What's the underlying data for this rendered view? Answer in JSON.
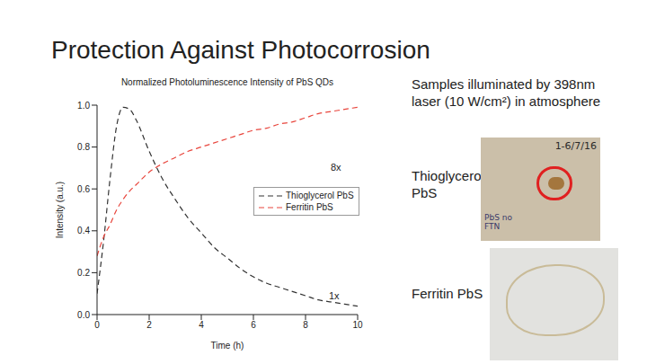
{
  "title": "Protection Against Photocorrosion",
  "caption": "Samples illuminated by 398nm laser (10 W/cm²) in atmosphere",
  "samples": [
    {
      "label": "Thioglycerol PbS",
      "notes": [
        "1-6/7/16",
        "PbS no FTN"
      ]
    },
    {
      "label": "Ferritin PbS",
      "notes": []
    }
  ],
  "chart_data": {
    "type": "line",
    "title": "Normalized Photoluminescence Intensity of PbS QDs",
    "x_label": "Time (h)",
    "y_label": "Intensity (a.u.)",
    "x": [
      0,
      0.25,
      0.5,
      0.75,
      1,
      1.25,
      1.5,
      2,
      2.5,
      3,
      3.5,
      4,
      4.5,
      5,
      5.5,
      6,
      6.5,
      7,
      7.5,
      8,
      8.5,
      9,
      9.5,
      10
    ],
    "series": [
      {
        "name": "Thioglycerol PbS",
        "color": "#333333",
        "line_style": "dashed",
        "marker": "none",
        "values": [
          0.1,
          0.35,
          0.65,
          0.9,
          0.99,
          0.98,
          0.93,
          0.78,
          0.65,
          0.55,
          0.46,
          0.39,
          0.32,
          0.27,
          0.22,
          0.18,
          0.15,
          0.13,
          0.11,
          0.09,
          0.07,
          0.06,
          0.05,
          0.04
        ]
      },
      {
        "name": "Ferritin PbS",
        "color": "#e8453c",
        "line_style": "dashed",
        "marker": "none",
        "values": [
          0.28,
          0.37,
          0.43,
          0.5,
          0.55,
          0.59,
          0.62,
          0.68,
          0.72,
          0.75,
          0.78,
          0.8,
          0.82,
          0.84,
          0.86,
          0.88,
          0.89,
          0.91,
          0.92,
          0.94,
          0.96,
          0.97,
          0.98,
          0.99
        ]
      }
    ],
    "xlim": [
      0,
      10
    ],
    "xticks": [
      0,
      2,
      4,
      6,
      8,
      10
    ],
    "ylim": [
      0,
      1
    ],
    "yticks": [
      {
        "value": 0,
        "label": "0.0"
      },
      0.2,
      0.4,
      0.6,
      0.8,
      {
        "value": 1,
        "label": "1.0"
      }
    ],
    "annotations": [
      "8x",
      "1x"
    ],
    "legend": "right",
    "grid": false
  }
}
